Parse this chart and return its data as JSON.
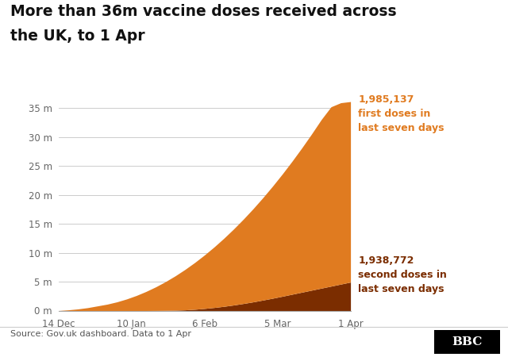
{
  "title_line1": "More than 36m vaccine doses received across",
  "title_line2": "the UK, to 1 Apr",
  "title_fontsize": 13.5,
  "source_text": "Source: Gov.uk dashboard. Data to 1 Apr",
  "color_first": "#E07B20",
  "color_second": "#7B2D00",
  "annotation_first": "1,985,137\nfirst doses in\nlast seven days",
  "annotation_second": "1,938,772\nsecond doses in\nlast seven days",
  "annotation_color_first": "#E07B20",
  "annotation_color_second": "#7B2D00",
  "ylim_max": 37000000,
  "ytick_values": [
    0,
    5000000,
    10000000,
    15000000,
    20000000,
    25000000,
    30000000,
    35000000
  ],
  "ytick_labels": [
    "0 m",
    "5 m",
    "10 m",
    "15 m",
    "20 m",
    "25 m",
    "30 m",
    "35 m"
  ],
  "xtick_labels": [
    "14 Dec",
    "10 Jan",
    "6 Feb",
    "5 Mar",
    "1 Apr"
  ],
  "background_color": "#ffffff",
  "grid_color": "#cccccc",
  "first_doses": [
    0,
    120000,
    280000,
    500000,
    800000,
    1100000,
    1500000,
    2000000,
    2600000,
    3300000,
    4100000,
    5000000,
    6000000,
    7100000,
    8300000,
    9600000,
    11000000,
    12500000,
    14100000,
    15800000,
    17600000,
    19500000,
    21500000,
    23600000,
    25800000,
    28100000,
    30500000,
    33000000,
    35200000,
    35900000,
    36100000
  ],
  "second_doses": [
    0,
    0,
    0,
    0,
    0,
    0,
    0,
    0,
    0,
    0,
    10000,
    30000,
    60000,
    120000,
    220000,
    360000,
    530000,
    730000,
    960000,
    1220000,
    1500000,
    1810000,
    2130000,
    2470000,
    2820000,
    3170000,
    3520000,
    3870000,
    4220000,
    4570000,
    4920000
  ],
  "num_points": 31,
  "xtick_days_from_start": [
    0,
    27,
    54,
    81,
    108
  ]
}
